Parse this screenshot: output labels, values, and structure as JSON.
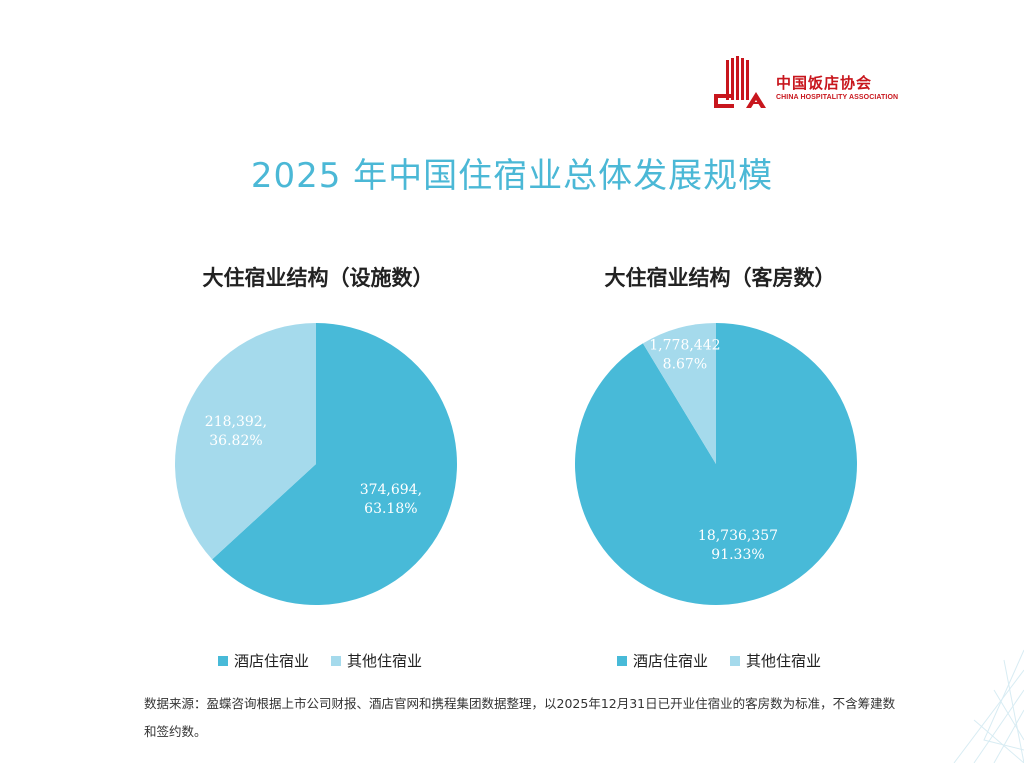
{
  "logo": {
    "name_cn": "中国饭店协会",
    "name_en": "CHINA HOSPITALITY ASSOCIATION",
    "color": "#c8161d"
  },
  "page_title": "2025 年中国住宿业总体发展规模",
  "colors": {
    "hotel": "#48bad8",
    "other": "#a5daec",
    "title": "#4bb8d6"
  },
  "chart_data": [
    {
      "type": "pie",
      "title": "大住宿业结构（设施数）",
      "slices": [
        {
          "name": "酒店住宿业",
          "value": 374694,
          "value_label": "374,694,",
          "percent": 63.18,
          "percent_label": "63.18%"
        },
        {
          "name": "其他住宿业",
          "value": 218392,
          "value_label": "218,392,",
          "percent": 36.82,
          "percent_label": "36.82%"
        }
      ],
      "legend": [
        "酒店住宿业",
        "其他住宿业"
      ],
      "legend_position": "bottom"
    },
    {
      "type": "pie",
      "title": "大住宿业结构（客房数）",
      "slices": [
        {
          "name": "酒店住宿业",
          "value": 18736357,
          "value_label": "18,736,357",
          "percent": 91.33,
          "percent_label": "91.33%"
        },
        {
          "name": "其他住宿业",
          "value": 1778442,
          "value_label": "1,778,442",
          "percent": 8.67,
          "percent_label": "8.67%"
        }
      ],
      "legend": [
        "酒店住宿业",
        "其他住宿业"
      ],
      "legend_position": "bottom"
    }
  ],
  "source_note": "数据来源：盈蝶咨询根据上市公司财报、酒店官网和携程集团数据整理，以2025年12月31日已开业住宿业的客房数为标准，不含筹建数和签约数。"
}
